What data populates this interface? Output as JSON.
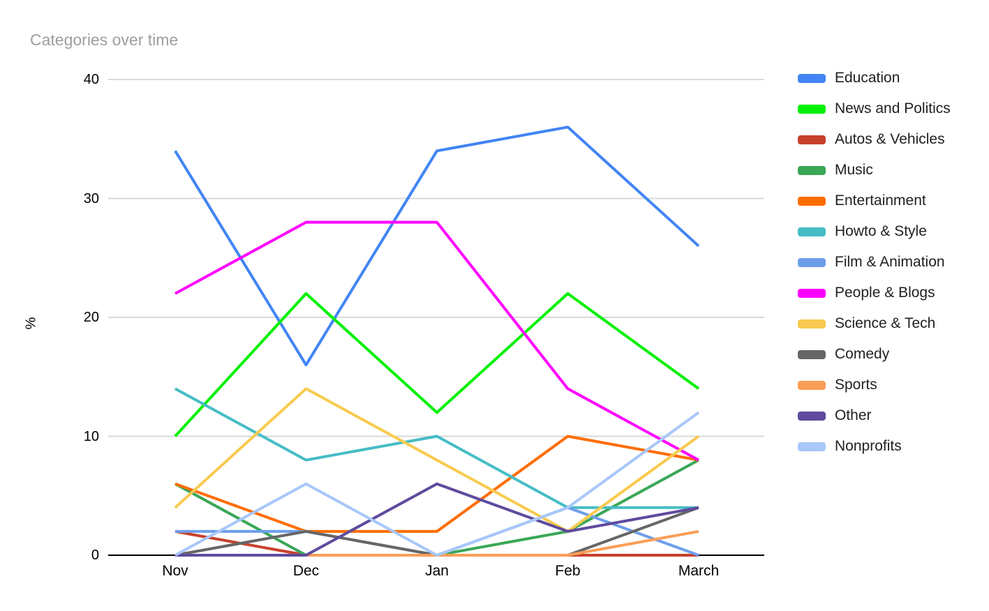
{
  "chart_data": {
    "type": "line",
    "title": "Categories over time",
    "ylabel": "%",
    "xlabel": "",
    "categories": [
      "Nov",
      "Dec",
      "Jan",
      "Feb",
      "March"
    ],
    "y_ticks": [
      40,
      30,
      20,
      10,
      0
    ],
    "ylim": [
      0,
      40
    ],
    "grid": true,
    "legend_position": "right",
    "series": [
      {
        "name": "Education",
        "color": "#4285F4",
        "values": [
          34,
          16,
          34,
          36,
          26
        ]
      },
      {
        "name": "News and Politics",
        "color": "#00F000",
        "values": [
          10,
          22,
          12,
          22,
          14
        ]
      },
      {
        "name": "Autos & Vehicles",
        "color": "#C7412B",
        "values": [
          2,
          0,
          0,
          0,
          0
        ]
      },
      {
        "name": "Music",
        "color": "#3AA757",
        "values": [
          6,
          0,
          0,
          2,
          8
        ]
      },
      {
        "name": "Entertainment",
        "color": "#FF6D01",
        "values": [
          6,
          2,
          2,
          10,
          8
        ]
      },
      {
        "name": "Howto & Style",
        "color": "#46BDC6",
        "values": [
          14,
          8,
          10,
          4,
          4
        ]
      },
      {
        "name": "Film & Animation",
        "color": "#6D9EEB",
        "values": [
          2,
          2,
          0,
          4,
          0
        ]
      },
      {
        "name": "People & Blogs",
        "color": "#FF00FF",
        "values": [
          22,
          28,
          28,
          14,
          8
        ]
      },
      {
        "name": "Science & Tech",
        "color": "#F8CA4F",
        "values": [
          4,
          14,
          8,
          2,
          10
        ]
      },
      {
        "name": "Comedy",
        "color": "#666666",
        "values": [
          0,
          2,
          0,
          0,
          4
        ]
      },
      {
        "name": "Sports",
        "color": "#FA9E57",
        "values": [
          0,
          0,
          0,
          0,
          2
        ]
      },
      {
        "name": "Other",
        "color": "#5F4B9E",
        "values": [
          0,
          0,
          6,
          2,
          4
        ]
      },
      {
        "name": "Nonprofits",
        "color": "#A8C7FA",
        "values": [
          0,
          6,
          0,
          4,
          12
        ]
      }
    ]
  },
  "layout_colors": {
    "title_text": "#9E9E9E",
    "gridline": "#D9D9D9",
    "axis_line": "#000000",
    "axis_text": "#000000",
    "legend_text": "#212121",
    "background": "#FFFFFF"
  }
}
